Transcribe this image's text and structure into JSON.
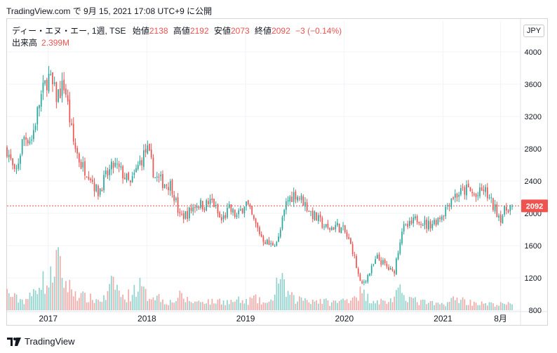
{
  "caption": "TradingView.com で 9月 15, 2021 17:08 UTC+9 に公開",
  "legend": {
    "symbol": "ディー・エヌ・エー, 1週, TSE",
    "open_label": "始値",
    "open": "2138",
    "high_label": "高値",
    "high": "2192",
    "low_label": "安値",
    "low": "2073",
    "close_label": "終値",
    "close": "2092",
    "change": "−3 (−0.14%)"
  },
  "volume_legend": {
    "label": "出来高",
    "value": "2.399M"
  },
  "currency": "JPY",
  "price_tag": "2092",
  "footer_brand": "TradingView",
  "colors": {
    "up": "#26a69a",
    "down": "#ef5350",
    "vol_up": "#8fd3cc",
    "vol_down": "#f3a9a7",
    "grid": "#f0f3fa",
    "price_line": "#ef5350"
  },
  "chart_data": {
    "type": "candlestick",
    "interval": "1 week",
    "ylim": [
      750,
      4080
    ],
    "y_ticks": [
      "4000",
      "3600",
      "3200",
      "2800",
      "2400",
      "2000",
      "1600",
      "1200",
      "800"
    ],
    "x_ticks": [
      "2017",
      "2018",
      "2019",
      "2020",
      "2021",
      "8月"
    ],
    "last_close": 2092,
    "price_path": [
      [
        "2016-08",
        2800
      ],
      [
        "2016-09",
        2450
      ],
      [
        "2016-10",
        2950
      ],
      [
        "2016-11",
        2920
      ],
      [
        "2016-12",
        3400
      ],
      [
        "2017-01",
        3700
      ],
      [
        "2017-02",
        3450
      ],
      [
        "2017-03",
        3600
      ],
      [
        "2017-04",
        2900
      ],
      [
        "2017-05",
        2600
      ],
      [
        "2017-06",
        2500
      ],
      [
        "2017-07",
        2250
      ],
      [
        "2017-08",
        2450
      ],
      [
        "2017-09",
        2600
      ],
      [
        "2017-10",
        2500
      ],
      [
        "2017-11",
        2350
      ],
      [
        "2017-12",
        2600
      ],
      [
        "2018-01",
        2800
      ],
      [
        "2018-02",
        2450
      ],
      [
        "2018-03",
        2380
      ],
      [
        "2018-04",
        2350
      ],
      [
        "2018-05",
        1950
      ],
      [
        "2018-06",
        2000
      ],
      [
        "2018-07",
        2120
      ],
      [
        "2018-08",
        2100
      ],
      [
        "2018-09",
        2150
      ],
      [
        "2018-10",
        1900
      ],
      [
        "2018-11",
        2050
      ],
      [
        "2018-12",
        1950
      ],
      [
        "2019-01",
        2150
      ],
      [
        "2019-02",
        1900
      ],
      [
        "2019-03",
        1700
      ],
      [
        "2019-04",
        1600
      ],
      [
        "2019-05",
        1680
      ],
      [
        "2019-06",
        2150
      ],
      [
        "2019-07",
        2250
      ],
      [
        "2019-08",
        2150
      ],
      [
        "2019-09",
        2000
      ],
      [
        "2019-10",
        1900
      ],
      [
        "2019-11",
        1800
      ],
      [
        "2019-12",
        1850
      ],
      [
        "2020-01",
        1780
      ],
      [
        "2020-02",
        1550
      ],
      [
        "2020-03",
        1100
      ],
      [
        "2020-04",
        1250
      ],
      [
        "2020-05",
        1450
      ],
      [
        "2020-06",
        1350
      ],
      [
        "2020-07",
        1250
      ],
      [
        "2020-08",
        1800
      ],
      [
        "2020-09",
        1850
      ],
      [
        "2020-10",
        1950
      ],
      [
        "2020-11",
        1850
      ],
      [
        "2020-12",
        1900
      ],
      [
        "2021-01",
        2000
      ],
      [
        "2021-02",
        2200
      ],
      [
        "2021-03",
        2250
      ],
      [
        "2021-04",
        2300
      ],
      [
        "2021-05",
        2200
      ],
      [
        "2021-06",
        2300
      ],
      [
        "2021-07",
        2100
      ],
      [
        "2021-08",
        1950
      ],
      [
        "2021-09",
        2092
      ]
    ],
    "volume_levels": [
      [
        "2016-08",
        0.9
      ],
      [
        "2016-09",
        0.6
      ],
      [
        "2016-10",
        0.5
      ],
      [
        "2016-11",
        0.7
      ],
      [
        "2016-12",
        1.6
      ],
      [
        "2017-01",
        1.2
      ],
      [
        "2017-02",
        2.6
      ],
      [
        "2017-03",
        1.4
      ],
      [
        "2017-04",
        1.0
      ],
      [
        "2017-05",
        0.7
      ],
      [
        "2017-06",
        0.6
      ],
      [
        "2017-07",
        0.5
      ],
      [
        "2017-08",
        0.6
      ],
      [
        "2017-09",
        1.5
      ],
      [
        "2017-10",
        0.6
      ],
      [
        "2017-11",
        0.8
      ],
      [
        "2017-12",
        1.3
      ],
      [
        "2018-01",
        0.7
      ],
      [
        "2018-02",
        0.8
      ],
      [
        "2018-03",
        0.5
      ],
      [
        "2018-04",
        0.4
      ],
      [
        "2018-05",
        0.7
      ],
      [
        "2018-06",
        0.5
      ],
      [
        "2018-07",
        0.4
      ],
      [
        "2018-08",
        0.5
      ],
      [
        "2018-09",
        0.4
      ],
      [
        "2018-10",
        0.5
      ],
      [
        "2018-11",
        0.4
      ],
      [
        "2018-12",
        0.5
      ],
      [
        "2019-01",
        0.4
      ],
      [
        "2019-02",
        0.6
      ],
      [
        "2019-03",
        0.4
      ],
      [
        "2019-04",
        0.3
      ],
      [
        "2019-05",
        1.7
      ],
      [
        "2019-06",
        0.9
      ],
      [
        "2019-07",
        0.5
      ],
      [
        "2019-08",
        0.6
      ],
      [
        "2019-09",
        0.5
      ],
      [
        "2019-10",
        0.5
      ],
      [
        "2019-11",
        0.4
      ],
      [
        "2019-12",
        0.4
      ],
      [
        "2020-01",
        0.5
      ],
      [
        "2020-02",
        0.7
      ],
      [
        "2020-03",
        0.9
      ],
      [
        "2020-04",
        0.6
      ],
      [
        "2020-05",
        0.5
      ],
      [
        "2020-06",
        0.4
      ],
      [
        "2020-07",
        0.6
      ],
      [
        "2020-08",
        1.0
      ],
      [
        "2020-09",
        0.6
      ],
      [
        "2020-10",
        0.4
      ],
      [
        "2020-11",
        0.4
      ],
      [
        "2020-12",
        0.3
      ],
      [
        "2021-01",
        0.3
      ],
      [
        "2021-02",
        0.5
      ],
      [
        "2021-03",
        0.6
      ],
      [
        "2021-04",
        0.4
      ],
      [
        "2021-05",
        0.4
      ],
      [
        "2021-06",
        0.3
      ],
      [
        "2021-07",
        0.3
      ],
      [
        "2021-08",
        0.3
      ],
      [
        "2021-09",
        0.3
      ]
    ]
  }
}
